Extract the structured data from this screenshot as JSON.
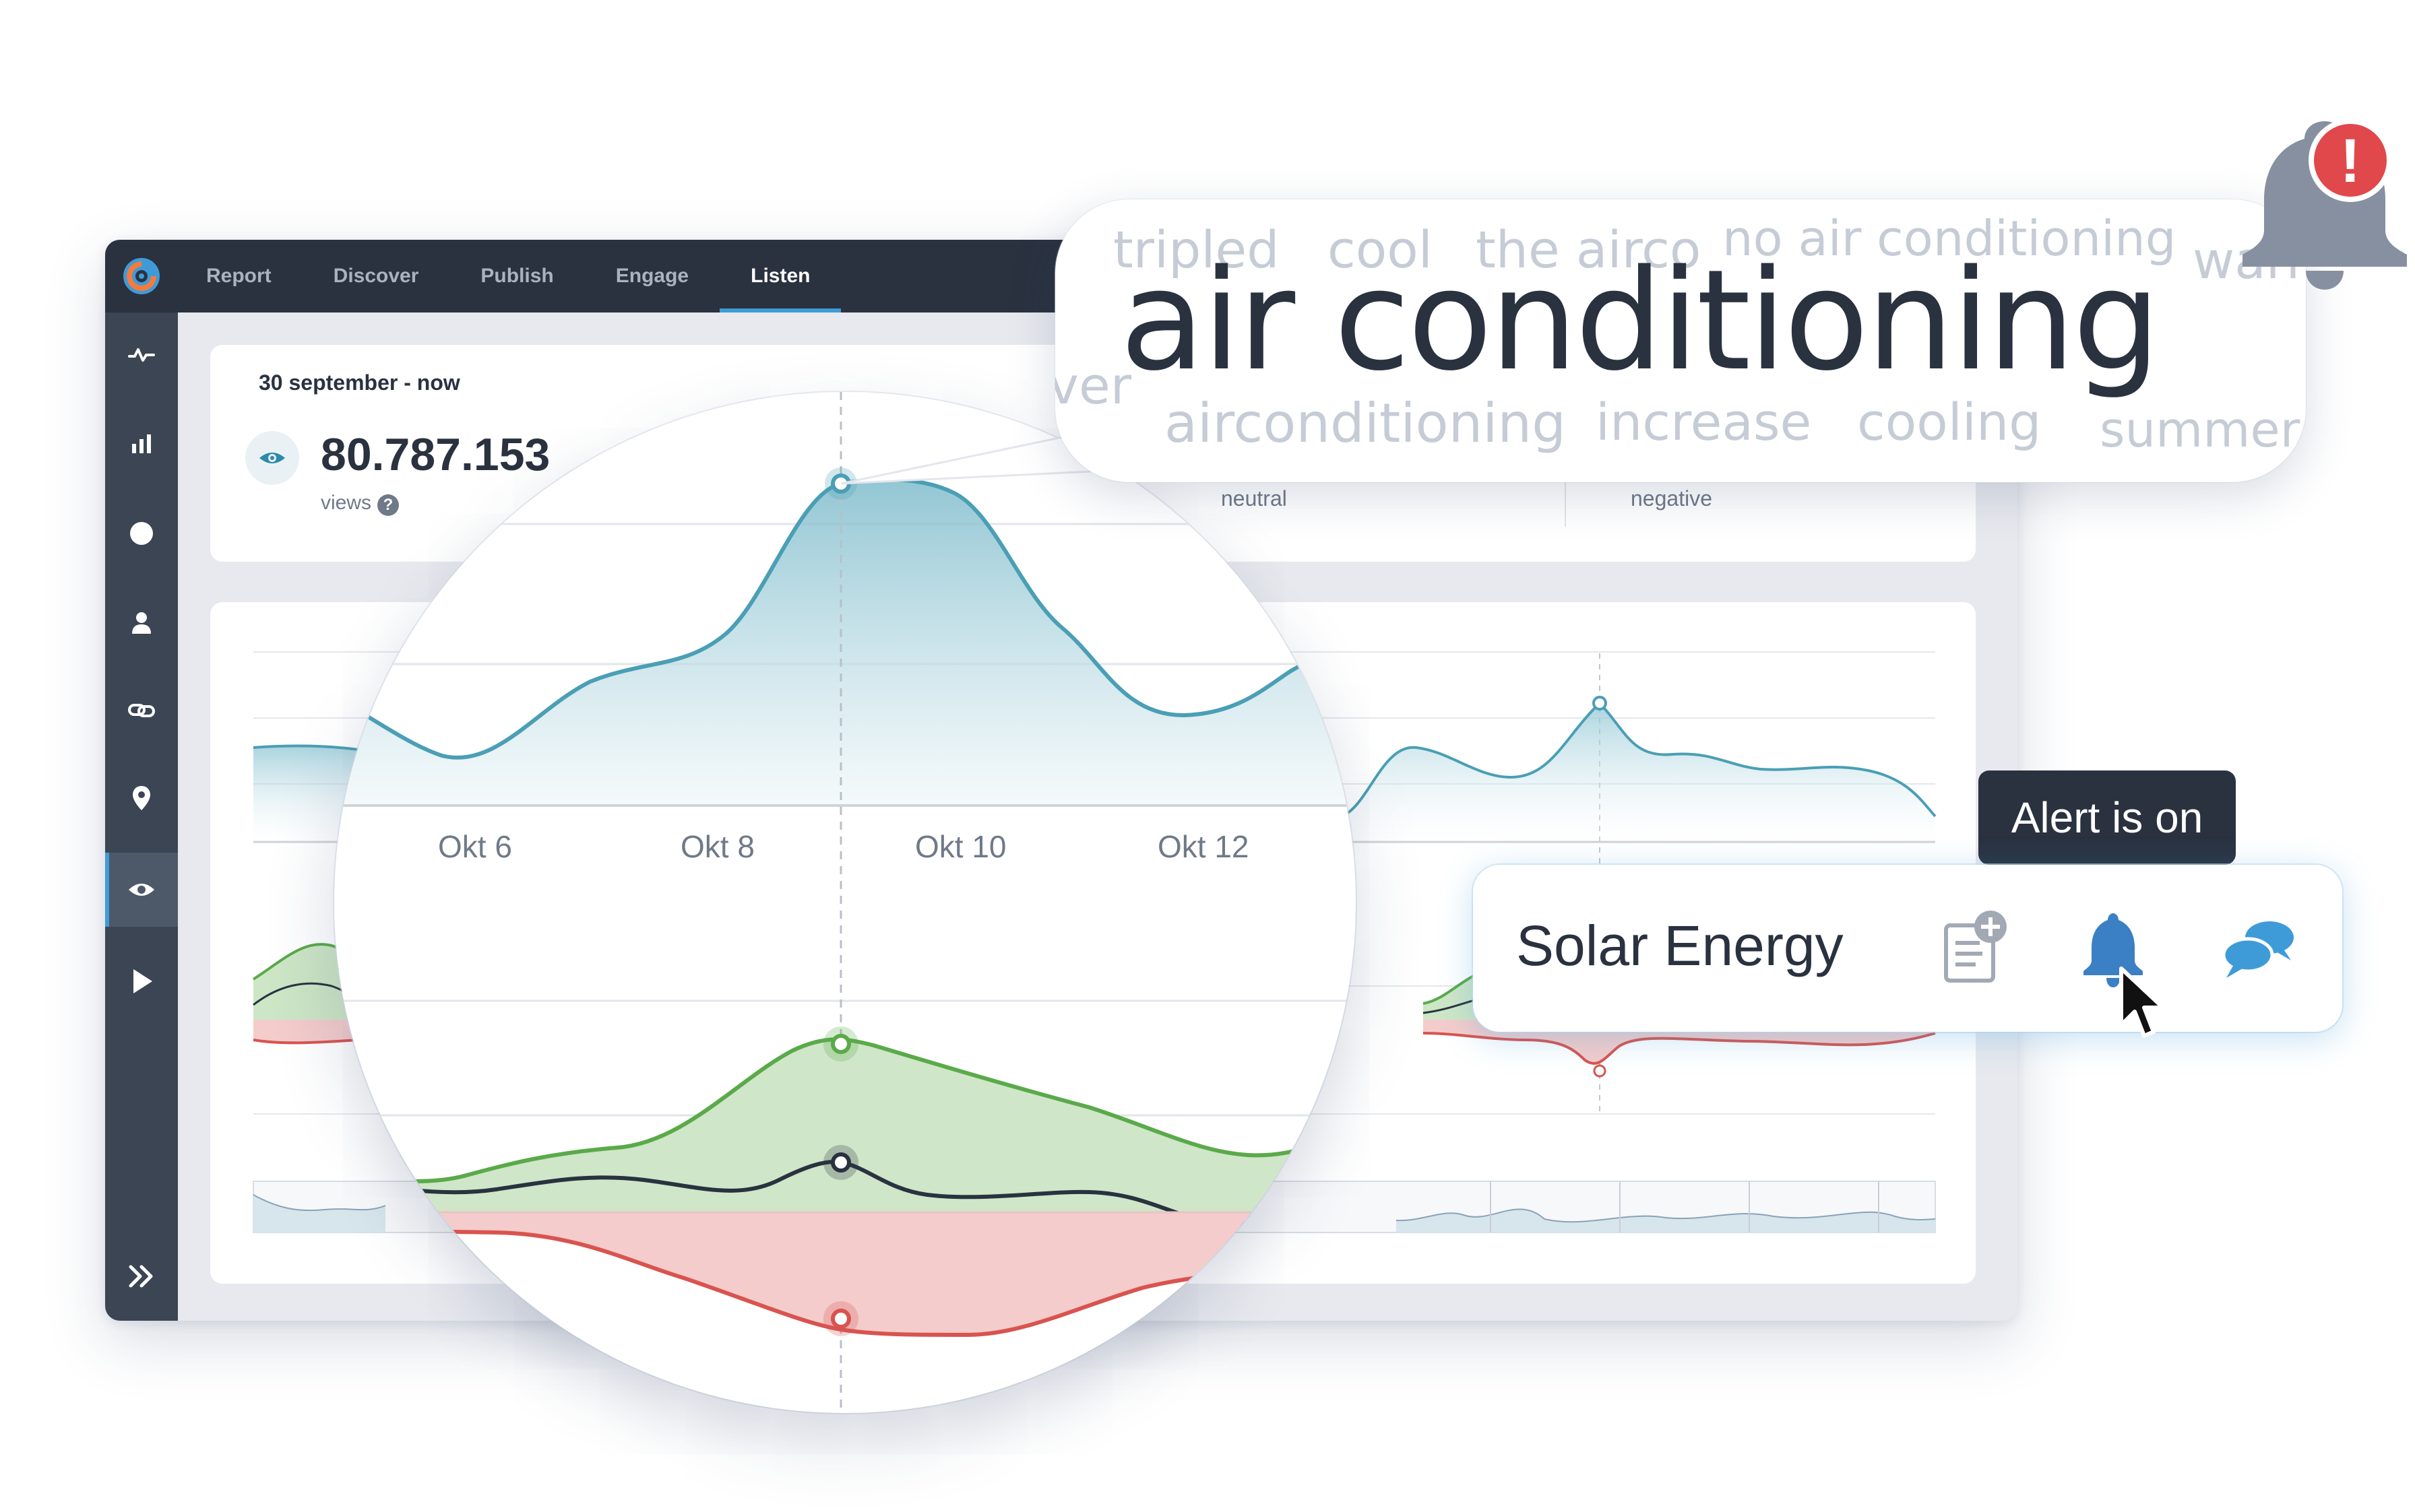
{
  "app": {
    "nav": {
      "tabs": [
        "Report",
        "Discover",
        "Publish",
        "Engage",
        "Listen"
      ],
      "active_tab": "Listen"
    },
    "sidebar": {
      "icons": [
        "activity-icon",
        "bar-chart-icon",
        "circle-icon",
        "user-icon",
        "link-icon",
        "location-pin-icon",
        "eye-icon",
        "play-icon"
      ],
      "active_icon": "eye-icon",
      "expand_icon": "double-chevron-right-icon"
    },
    "summary": {
      "date_range": "30 september - now",
      "views_value": "80.787.153",
      "views_label": "views",
      "help_icon": "question-icon",
      "sentiment_labels": [
        "neutral",
        "negative"
      ]
    }
  },
  "magnifier": {
    "x_labels": [
      "Okt 6",
      "Okt 8",
      "Okt 10",
      "Okt 12"
    ]
  },
  "word_cloud": {
    "main_word": "air conditioning",
    "words": [
      "tripled",
      "cool",
      "the airco",
      "no air conditioning",
      "warm",
      "ver",
      "airconditioning",
      "increase",
      "cooling",
      "summer"
    ]
  },
  "alert": {
    "big_bell_icon": "bell-alert-icon",
    "alert_badge_text": "!",
    "tooltip": "Alert is on",
    "topic_label": "Solar Energy",
    "actions": [
      "add-note-icon",
      "bell-icon",
      "comments-icon"
    ]
  },
  "colors": {
    "views_line": "#4a9fb5",
    "positive": "#5aaa4a",
    "negative": "#d9534f",
    "neutral": "#2a3240",
    "accent": "#3f9bd8",
    "alert_badge": "#e0484b"
  }
}
